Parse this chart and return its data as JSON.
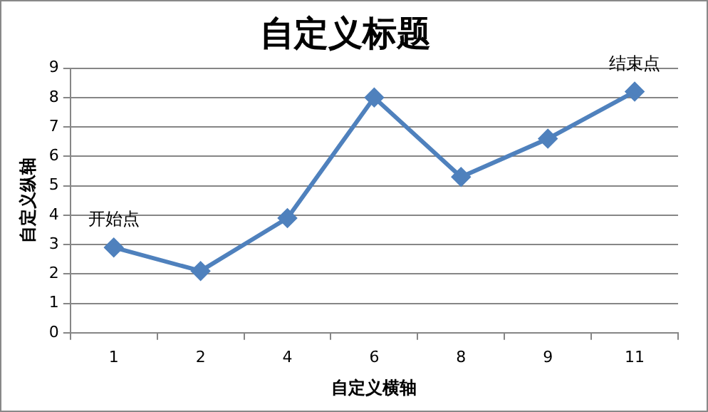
{
  "chart_data": {
    "type": "line",
    "title": "自定义标题",
    "xlabel": "自定义横轴",
    "ylabel": "自定义纵轴",
    "categories": [
      "1",
      "2",
      "4",
      "6",
      "8",
      "9",
      "11"
    ],
    "series": [
      {
        "color": "#4f81bd",
        "values": [
          2.9,
          2.1,
          3.9,
          8.0,
          5.3,
          6.6,
          8.2
        ]
      }
    ],
    "ylim": [
      0,
      9
    ],
    "yticks": [
      0,
      1,
      2,
      3,
      4,
      5,
      6,
      7,
      8,
      9
    ],
    "grid": "y",
    "legend": false,
    "marker": "diamond",
    "line_style": "solid",
    "annotations": [
      {
        "text": "开始点",
        "x": "1",
        "y": 2.9
      },
      {
        "text": "结束点",
        "x": "11",
        "y": 8.2
      }
    ]
  }
}
